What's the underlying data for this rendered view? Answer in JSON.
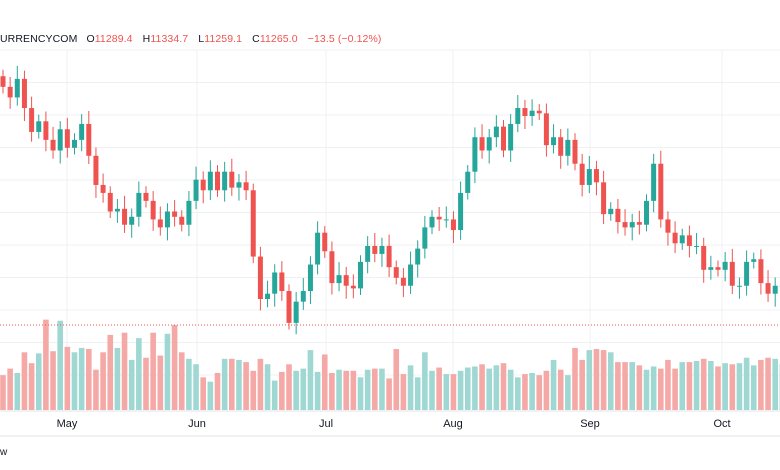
{
  "header": {
    "symbol": "URRENCYCOM",
    "open_label": "O",
    "open": "11289.4",
    "high_label": "H",
    "high": "11334.7",
    "low_label": "L",
    "low": "11259.1",
    "close_label": "C",
    "close": "11265.0",
    "change": "−13.5 (−0.12%)"
  },
  "footer": {
    "fragment": "w"
  },
  "colors": {
    "up": "#26a69a",
    "down": "#ef5350",
    "up_volume": "#9fd8d2",
    "down_volume": "#f5a9a6",
    "grid": "#eef0f3",
    "axis_text": "#131722"
  },
  "chart_data": {
    "type": "candlestick",
    "title": "",
    "x_tick_labels": [
      "May",
      "Jun",
      "Jul",
      "Aug",
      "Sep",
      "Oct"
    ],
    "last_close": 11265.0,
    "price_series": [
      19.3,
      18.9,
      19.6,
      18.5,
      17.6,
      18.0,
      17.3,
      16.9,
      17.7,
      17.0,
      17.3,
      17.9,
      16.7,
      15.6,
      15.3,
      14.6,
      14.7,
      14.1,
      14.4,
      15.3,
      15.0,
      14.3,
      14.0,
      14.6,
      14.4,
      14.1,
      15.0,
      15.8,
      15.4,
      16.1,
      15.4,
      16.1,
      15.5,
      15.7,
      15.4,
      12.9,
      11.3,
      11.5,
      12.3,
      11.6,
      10.4,
      11.2,
      11.6,
      12.6,
      13.8,
      13.1,
      11.9,
      12.2,
      11.8,
      11.7,
      12.7,
      13.3,
      13.0,
      13.3,
      12.5,
      12.1,
      11.8,
      12.6,
      13.2,
      14.0,
      14.4,
      14.3,
      14.3,
      13.9,
      15.3,
      16.1,
      17.4,
      16.9,
      17.4,
      17.8,
      16.9,
      17.9,
      18.5,
      18.2,
      18.4,
      18.3,
      17.1,
      17.4,
      16.7,
      17.3,
      16.4,
      15.6,
      16.2,
      15.7,
      14.5,
      14.7,
      14.2,
      14.0,
      14.2,
      14.1,
      15.0,
      16.4,
      14.3,
      13.8,
      13.4,
      13.7,
      13.3,
      13.3,
      12.4,
      12.5,
      12.4,
      12.7,
      11.8,
      11.8,
      12.7,
      12.8,
      11.9,
      11.5,
      11.8,
      11.8
    ],
    "volume_series": [
      3.2,
      3.8,
      3.4,
      5.3,
      4.3,
      5.2,
      8.3,
      5.4,
      8.2,
      5.8,
      5.3,
      5.7,
      5.6,
      3.7,
      5.3,
      6.9,
      5.7,
      7.1,
      4.6,
      6.6,
      4.8,
      7.1,
      5.0,
      7.0,
      7.8,
      5.3,
      4.7,
      4.2,
      3.0,
      2.6,
      3.4,
      4.7,
      4.7,
      4.6,
      4.4,
      3.6,
      4.7,
      4.2,
      2.7,
      3.5,
      4.2,
      3.6,
      3.8,
      5.5,
      3.5,
      5.1,
      3.4,
      3.7,
      3.6,
      3.6,
      3.0,
      3.7,
      3.8,
      3.8,
      2.9,
      5.6,
      3.3,
      4.1,
      3.0,
      5.3,
      3.6,
      3.9,
      3.3,
      3.3,
      3.6,
      3.9,
      4.0,
      4.2,
      3.8,
      4.1,
      4.3,
      3.7,
      3.0,
      3.3,
      3.4,
      3.2,
      3.6,
      4.6,
      3.7,
      3.2,
      5.7,
      4.6,
      5.5,
      5.6,
      5.5,
      5.3,
      4.4,
      4.4,
      4.4,
      4.1,
      3.7,
      4.0,
      3.8,
      4.6,
      3.8,
      4.4,
      4.4,
      4.5,
      4.7,
      4.5,
      4.0,
      4.3,
      4.2,
      4.3,
      4.8,
      4.1,
      4.6,
      4.8,
      4.7,
      4.2
    ]
  }
}
